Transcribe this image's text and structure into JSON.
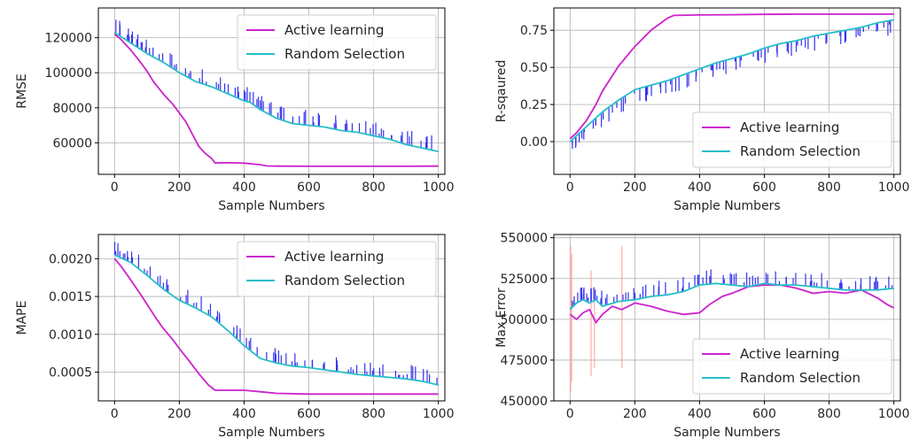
{
  "chart_data": [
    {
      "type": "line",
      "id": "rmse",
      "xlabel": "Sample Numbers",
      "ylabel": "RMSE",
      "xlim": [
        -50,
        1020
      ],
      "ylim": [
        42000,
        137000
      ],
      "xticks": [
        0,
        200,
        400,
        600,
        800,
        1000
      ],
      "yticks": [
        60000,
        80000,
        100000,
        120000
      ],
      "legend_position": "upper right",
      "grid": true,
      "series": [
        {
          "name": "Active learning",
          "color": "#cc22cc",
          "x": [
            0,
            20,
            50,
            80,
            100,
            120,
            150,
            180,
            200,
            220,
            240,
            260,
            280,
            300,
            310,
            350,
            400,
            450,
            470,
            500,
            600,
            700,
            800,
            900,
            1000
          ],
          "y": [
            122000,
            119000,
            113000,
            106000,
            101000,
            95000,
            88000,
            82000,
            77000,
            72000,
            65000,
            58000,
            54000,
            51000,
            48500,
            48600,
            48400,
            47500,
            46800,
            46700,
            46600,
            46600,
            46600,
            46600,
            46700
          ]
        },
        {
          "name": "Random Selection",
          "color": "#26bec8",
          "x": [
            0,
            25,
            50,
            75,
            100,
            150,
            200,
            250,
            300,
            350,
            400,
            420,
            450,
            500,
            550,
            600,
            650,
            700,
            750,
            800,
            850,
            900,
            950,
            1000
          ],
          "y": [
            123000,
            120000,
            117000,
            114000,
            111000,
            106000,
            100000,
            95000,
            92000,
            88000,
            84000,
            83000,
            79000,
            74000,
            71000,
            70000,
            69000,
            67000,
            66000,
            64000,
            62000,
            59000,
            57000,
            55000
          ]
        }
      ],
      "variance_color": "#3333ee"
    },
    {
      "type": "line",
      "id": "r2",
      "xlabel": "Sample Numbers",
      "ylabel": "R-sqaured",
      "xlim": [
        -50,
        1020
      ],
      "ylim": [
        -0.22,
        0.9
      ],
      "xticks": [
        0,
        200,
        400,
        600,
        800,
        1000
      ],
      "yticks": [
        0.0,
        0.25,
        0.5,
        0.75
      ],
      "ytick_labels": [
        "0.00",
        "0.25",
        "0.50",
        "0.75"
      ],
      "legend_position": "lower right",
      "grid": true,
      "series": [
        {
          "name": "Active learning",
          "color": "#cc22cc",
          "x": [
            0,
            20,
            50,
            80,
            100,
            150,
            200,
            250,
            300,
            320,
            400,
            500,
            600,
            700,
            800,
            900,
            1000
          ],
          "y": [
            0.02,
            0.06,
            0.14,
            0.25,
            0.34,
            0.51,
            0.64,
            0.75,
            0.83,
            0.85,
            0.853,
            0.855,
            0.857,
            0.858,
            0.858,
            0.858,
            0.858
          ]
        },
        {
          "name": "Random Selection",
          "color": "#26bec8",
          "x": [
            0,
            25,
            50,
            100,
            150,
            200,
            250,
            300,
            350,
            400,
            450,
            500,
            550,
            600,
            650,
            700,
            750,
            800,
            850,
            900,
            950,
            1000
          ],
          "y": [
            0.0,
            0.05,
            0.1,
            0.2,
            0.28,
            0.35,
            0.38,
            0.41,
            0.45,
            0.49,
            0.53,
            0.56,
            0.59,
            0.63,
            0.66,
            0.68,
            0.71,
            0.73,
            0.75,
            0.77,
            0.8,
            0.82
          ]
        }
      ],
      "variance_color": "#3333ee"
    },
    {
      "type": "line",
      "id": "mape",
      "xlabel": "Sample Numbers",
      "ylabel": "MAPE",
      "xlim": [
        -50,
        1020
      ],
      "ylim": [
        0.00012,
        0.00232
      ],
      "xticks": [
        0,
        200,
        400,
        600,
        800,
        1000
      ],
      "yticks": [
        0.0005,
        0.001,
        0.0015,
        0.002
      ],
      "ytick_labels": [
        "0.0005",
        "0.0010",
        "0.0015",
        "0.0020"
      ],
      "legend_position": "upper right",
      "grid": true,
      "series": [
        {
          "name": "Active learning",
          "color": "#cc22cc",
          "x": [
            0,
            20,
            50,
            80,
            100,
            130,
            150,
            180,
            200,
            230,
            260,
            290,
            310,
            350,
            400,
            450,
            500,
            600,
            700,
            800,
            900,
            1000
          ],
          "y": [
            0.002,
            0.0019,
            0.00172,
            0.00153,
            0.0014,
            0.0012,
            0.00108,
            0.00093,
            0.00081,
            0.00065,
            0.00048,
            0.00033,
            0.00026,
            0.00026,
            0.00026,
            0.00024,
            0.00022,
            0.00021,
            0.00021,
            0.00021,
            0.00021,
            0.00021
          ]
        },
        {
          "name": "Random Selection",
          "color": "#26bec8",
          "x": [
            0,
            25,
            50,
            100,
            150,
            200,
            250,
            300,
            350,
            400,
            450,
            500,
            550,
            600,
            650,
            700,
            750,
            800,
            850,
            900,
            950,
            1000
          ],
          "y": [
            0.00205,
            0.002,
            0.00195,
            0.00178,
            0.0016,
            0.00145,
            0.00135,
            0.00123,
            0.00105,
            0.00085,
            0.00068,
            0.00062,
            0.00058,
            0.00056,
            0.00053,
            0.0005,
            0.00047,
            0.00045,
            0.00043,
            0.00041,
            0.00038,
            0.00033
          ]
        }
      ],
      "variance_color": "#3333ee"
    },
    {
      "type": "line",
      "id": "maxerr",
      "xlabel": "Sample Numbers",
      "ylabel": "Max Error",
      "xlim": [
        -50,
        1020
      ],
      "ylim": [
        450000,
        552000
      ],
      "xticks": [
        0,
        200,
        400,
        600,
        800,
        1000
      ],
      "yticks": [
        450000,
        475000,
        500000,
        525000,
        550000
      ],
      "legend_position": "lower right",
      "grid": true,
      "series": [
        {
          "name": "Active learning",
          "color": "#cc22cc",
          "x": [
            0,
            20,
            40,
            60,
            80,
            100,
            130,
            160,
            200,
            250,
            300,
            350,
            400,
            430,
            470,
            500,
            550,
            600,
            650,
            700,
            750,
            800,
            850,
            900,
            950,
            980,
            1000
          ],
          "y": [
            503000,
            500000,
            504000,
            506000,
            498000,
            503000,
            508000,
            506000,
            510000,
            508000,
            505000,
            503000,
            504000,
            509000,
            514000,
            516000,
            520000,
            521000,
            521000,
            519000,
            516000,
            517000,
            516000,
            518000,
            513000,
            509000,
            507000
          ]
        },
        {
          "name": "Random Selection",
          "color": "#26bec8",
          "x": [
            0,
            20,
            40,
            60,
            80,
            100,
            150,
            200,
            250,
            300,
            350,
            400,
            450,
            500,
            550,
            600,
            650,
            700,
            750,
            800,
            850,
            900,
            950,
            1000
          ],
          "y": [
            506000,
            510000,
            512000,
            510000,
            512000,
            508000,
            511000,
            512000,
            514000,
            515000,
            517000,
            521000,
            522000,
            521000,
            520000,
            522000,
            521000,
            521000,
            520000,
            519000,
            518000,
            518000,
            518000,
            519000
          ]
        }
      ],
      "variance_color": "#3333ee",
      "spike_color": "#ffaaaa"
    }
  ]
}
